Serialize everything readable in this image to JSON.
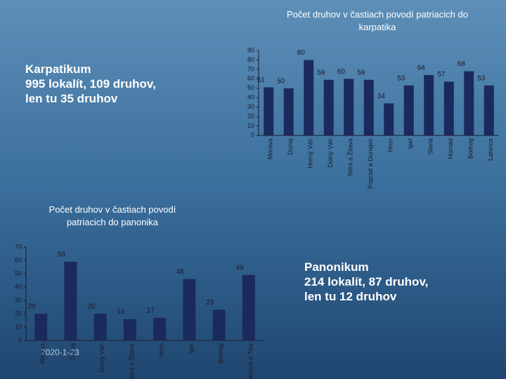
{
  "chart_data": [
    {
      "type": "bar",
      "title": "Počet druhov v častiach povodí patriacich do karpatika",
      "categories": [
        "Morava",
        "Dunaj",
        "Horný Váh",
        "Dolný Váh",
        "Nitra a Žitava",
        "Poprad a Dunajec",
        "Hron",
        "Ipeľ",
        "Slaná",
        "Hornád",
        "Bodrog",
        "Latorica"
      ],
      "values": [
        51,
        50,
        80,
        59,
        60,
        59,
        34,
        53,
        64,
        57,
        68,
        53
      ],
      "color": "#1b2a5c",
      "ylim": [
        0,
        90
      ],
      "yticks": [
        0,
        10,
        20,
        30,
        40,
        50,
        60,
        70,
        80,
        90
      ]
    },
    {
      "type": "bar",
      "title": "Počet druhov v častiach povodí patriacich do panonika",
      "categories": [
        "Morava",
        "Dunaj",
        "Dolný Váh",
        "Nitra a Žitava",
        "Hron",
        "Ipeľ",
        "Bodrog",
        "Latorica a Tisa"
      ],
      "values": [
        20,
        59,
        20,
        16,
        17,
        46,
        23,
        49
      ],
      "color": "#1b2a5c",
      "ylim": [
        0,
        70
      ],
      "yticks": [
        0,
        10,
        20,
        30,
        40,
        50,
        60,
        70
      ]
    }
  ],
  "text_blocks": [
    {
      "lines": [
        "Karpatikum",
        "995 lokalít, 109 druhov,",
        "len tu 35 druhov"
      ]
    },
    {
      "lines": [
        "Panonikum",
        "214 lokalít, 87 druhov,",
        "len tu 12 druhov"
      ]
    }
  ],
  "date": "2020-1-23"
}
